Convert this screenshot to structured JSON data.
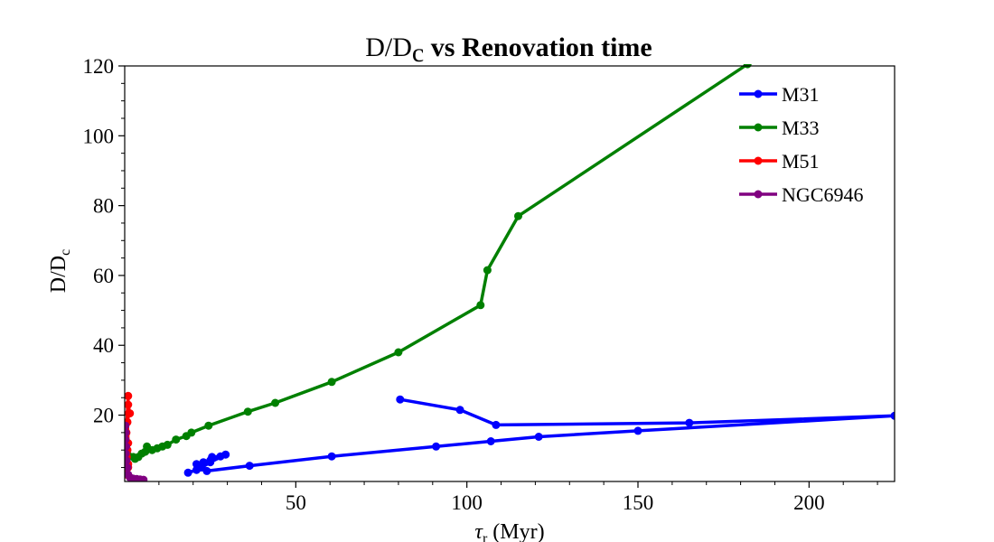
{
  "chart_data": {
    "type": "line",
    "title_prefix": "D/D",
    "title_prefix_sub": "c",
    "title_main": " vs Renovation time",
    "xlabel_symbol": "τ",
    "xlabel_sub": "r",
    "xlabel_rest": " (Myr)",
    "ylabel_main": "D/D",
    "ylabel_sub": "c",
    "xlim": [
      0,
      225
    ],
    "ylim": [
      1,
      120
    ],
    "xticks": [
      50,
      100,
      150,
      200
    ],
    "xtick_labels": [
      "50",
      "100",
      "150",
      "200"
    ],
    "yticks": [
      20,
      40,
      60,
      80,
      100,
      120
    ],
    "ytick_labels": [
      "20",
      "40",
      "60",
      "80",
      "100",
      "120"
    ],
    "grid": false,
    "legend_position": "top-right",
    "series": [
      {
        "name": "M31",
        "color": "#0000ff",
        "points": [
          [
            80.5,
            24.5
          ],
          [
            98,
            21.5
          ],
          [
            108.5,
            17.2
          ],
          [
            165,
            17.8
          ],
          [
            225,
            19.8
          ],
          [
            150,
            15.5
          ],
          [
            121,
            13.8
          ],
          [
            107,
            12.5
          ],
          [
            91,
            11
          ],
          [
            60.5,
            8.2
          ],
          [
            36.5,
            5.5
          ],
          [
            24,
            4
          ],
          [
            22,
            5
          ],
          [
            21,
            6
          ],
          [
            23,
            6.5
          ],
          [
            25,
            7
          ],
          [
            25.5,
            8
          ],
          [
            28,
            8.2
          ],
          [
            29.5,
            8.7
          ],
          [
            25,
            6.5
          ],
          [
            22.5,
            5
          ],
          [
            21,
            4.3
          ],
          [
            18.5,
            3.5
          ]
        ]
      },
      {
        "name": "M33",
        "color": "#008000",
        "points": [
          [
            1,
            8.5
          ],
          [
            2.5,
            8
          ],
          [
            3,
            7.5
          ],
          [
            4,
            8
          ],
          [
            5,
            9
          ],
          [
            6,
            9.5
          ],
          [
            6.5,
            11
          ],
          [
            8,
            10
          ],
          [
            9.5,
            10.5
          ],
          [
            11,
            11
          ],
          [
            12.5,
            11.5
          ],
          [
            15,
            13
          ],
          [
            18,
            14
          ],
          [
            19.5,
            15
          ],
          [
            24.5,
            17
          ],
          [
            36,
            21
          ],
          [
            44,
            23.5
          ],
          [
            60.5,
            29.5
          ],
          [
            80,
            38
          ],
          [
            104,
            51.5
          ],
          [
            106,
            61.5
          ],
          [
            115,
            77
          ],
          [
            182,
            120.5
          ]
        ]
      },
      {
        "name": "M51",
        "color": "#ff0000",
        "points": [
          [
            0.5,
            3
          ],
          [
            1,
            6
          ],
          [
            0.5,
            9
          ],
          [
            1,
            12
          ],
          [
            0.8,
            18
          ],
          [
            1.2,
            20.5
          ],
          [
            1.5,
            20.5
          ],
          [
            1,
            23
          ],
          [
            1,
            25.5
          ],
          [
            0.5,
            15
          ],
          [
            0.8,
            10
          ],
          [
            0.6,
            8
          ],
          [
            1,
            5
          ]
        ]
      },
      {
        "name": "NGC6946",
        "color": "#800080",
        "points": [
          [
            0.2,
            17
          ],
          [
            0.3,
            15
          ],
          [
            0.2,
            13
          ],
          [
            0.4,
            11
          ],
          [
            0.3,
            9
          ],
          [
            0.5,
            7
          ],
          [
            0.8,
            5
          ],
          [
            1,
            3
          ],
          [
            1.5,
            2.2
          ],
          [
            2.5,
            1.8
          ],
          [
            3.5,
            1.7
          ],
          [
            4.5,
            1.6
          ],
          [
            5.5,
            1.5
          ]
        ]
      }
    ]
  }
}
